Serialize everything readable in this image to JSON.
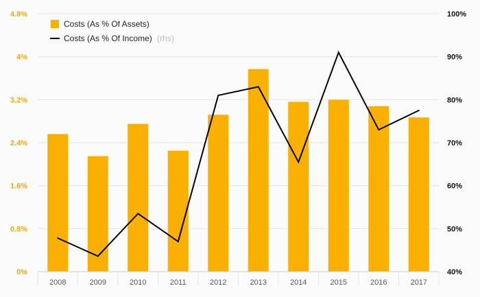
{
  "chart_data": {
    "type": "bar+line",
    "categories": [
      "2008",
      "2009",
      "2010",
      "2011",
      "2012",
      "2013",
      "2014",
      "2015",
      "2016",
      "2017"
    ],
    "series": [
      {
        "name": "Costs (As % Of Assets)",
        "type": "bar",
        "axis": "left",
        "values": [
          2.56,
          2.15,
          2.75,
          2.25,
          2.92,
          3.77,
          3.16,
          3.2,
          3.08,
          2.87
        ]
      },
      {
        "name": "Costs (As % Of Income)",
        "type": "line",
        "axis": "right",
        "values": [
          47.8,
          43.6,
          53.5,
          47.0,
          81.0,
          83.0,
          65.5,
          91.0,
          73.0,
          77.5
        ]
      }
    ],
    "left_axis": {
      "ylim": [
        0,
        4.8
      ],
      "ticks": [
        0,
        0.8,
        1.6,
        2.4,
        3.2,
        4,
        4.8
      ],
      "tick_labels": [
        "0%",
        "0.8%",
        "1.6%",
        "2.4%",
        "3.2%",
        "4%",
        "4.8%"
      ]
    },
    "right_axis": {
      "ylim": [
        40,
        100
      ],
      "ticks": [
        40,
        50,
        60,
        70,
        80,
        90,
        100
      ],
      "tick_labels": [
        "40%",
        "50%",
        "60%",
        "70%",
        "80%",
        "90%",
        "100%"
      ]
    },
    "legend": {
      "placement": "top-left",
      "entries": [
        {
          "label": "Costs (As % Of Assets)",
          "suffix": ""
        },
        {
          "label": "Costs (As % Of Income)",
          "suffix": "(rhs)"
        }
      ]
    },
    "grid": true,
    "colors": {
      "bar": "#f9b000",
      "line": "#000000",
      "left_ticks": "#f5a800",
      "grid": "#e6e6e6",
      "background": "#fbfbfb"
    }
  }
}
